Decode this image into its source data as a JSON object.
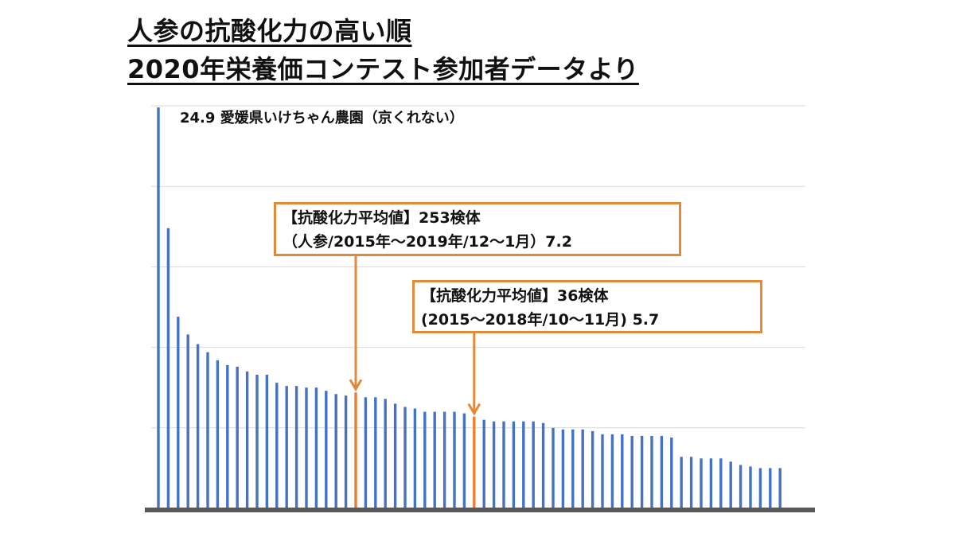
{
  "title": {
    "line1": "人参の抗酸化力の高い順",
    "line2": "2020年栄養価コンテスト参加者データより"
  },
  "top_annotation": {
    "value": "24.9",
    "label": "愛媛県いけちゃん農園（京くれない）"
  },
  "callouts": [
    {
      "line1": "【抗酸化力平均値】253検体",
      "line2": "（人参/2015年～2019年/12～1月）7.2"
    },
    {
      "line1": "【抗酸化力平均値】36検体",
      "line2": "(2015～2018年/10～11月) 5.7"
    }
  ],
  "colors": {
    "bar": "#4472C4",
    "highlight": "#ED7D31",
    "callout_border": "#E08A3C",
    "grid": "#D9D9D9",
    "axis": "#595959"
  },
  "chart_data": {
    "type": "bar",
    "title": "",
    "xlabel": "",
    "ylabel": "",
    "ylim": [
      0,
      25
    ],
    "grid": true,
    "values": [
      24.9,
      17.4,
      11.9,
      10.8,
      10.2,
      9.7,
      9.2,
      8.9,
      8.8,
      8.5,
      8.3,
      8.3,
      7.8,
      7.6,
      7.6,
      7.5,
      7.5,
      7.3,
      7.1,
      7.0,
      7.2,
      6.9,
      6.9,
      6.8,
      6.5,
      6.3,
      6.2,
      6.0,
      6.0,
      6.0,
      6.0,
      5.9,
      5.7,
      5.5,
      5.4,
      5.4,
      5.4,
      5.4,
      5.4,
      5.3,
      5.0,
      4.9,
      4.9,
      4.9,
      4.8,
      4.6,
      4.6,
      4.6,
      4.5,
      4.5,
      4.5,
      4.5,
      4.4,
      3.2,
      3.2,
      3.1,
      3.1,
      3.1,
      2.9,
      2.7,
      2.6,
      2.5,
      2.5,
      2.5
    ],
    "highlight": [
      {
        "index": 20,
        "value": 7.2
      },
      {
        "index": 32,
        "value": 5.7
      }
    ]
  }
}
